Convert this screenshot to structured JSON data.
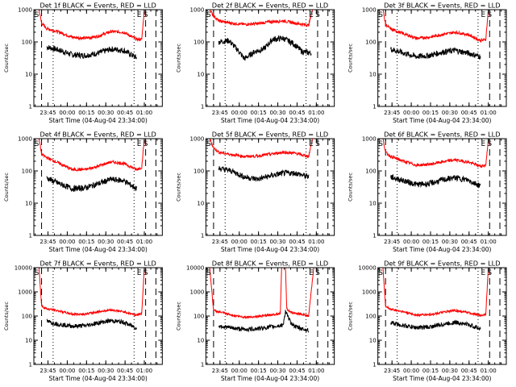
{
  "figure": {
    "xlabel": "Start Time (04-Aug-04 23:34:00)",
    "ylabel": "Counts/sec",
    "y_ticks": [
      {
        "value": 1,
        "label": "1"
      },
      {
        "value": 10,
        "label": "10"
      },
      {
        "value": 100,
        "label": "100"
      },
      {
        "value": 1000,
        "label": "1000"
      },
      {
        "value": 10000,
        "label": "10000"
      }
    ],
    "x_ticks": [
      {
        "value": 11,
        "label": "23:45"
      },
      {
        "value": 26,
        "label": "00:00"
      },
      {
        "value": 41,
        "label": "00:15"
      },
      {
        "value": 56,
        "label": "00:30"
      },
      {
        "value": 71,
        "label": "00:45"
      },
      {
        "value": 86,
        "label": "01:00"
      }
    ],
    "colors": {
      "events": "#000000",
      "lld": "#ff0000",
      "background": "#ffffff"
    }
  },
  "chart_data": [
    {
      "type": "line",
      "title": "Det 1f BLACK = Events, RED = LLD",
      "ylim": [
        1,
        1000
      ],
      "xlim": [
        0,
        100
      ],
      "y_scale": "log",
      "series": [
        {
          "name": "BLACK = Events",
          "color": "#000000",
          "x": [
            10,
            20,
            30,
            40,
            50,
            60,
            70,
            80
          ],
          "values": [
            70,
            55,
            40,
            38,
            45,
            60,
            55,
            32
          ]
        },
        {
          "name": "RED = LLD",
          "color": "#ff0000",
          "x": [
            0,
            4,
            6,
            10,
            20,
            30,
            40,
            50,
            60,
            70,
            80,
            84,
            86,
            88
          ],
          "values": [
            1000,
            1000,
            380,
            260,
            200,
            140,
            130,
            150,
            210,
            200,
            120,
            120,
            1000,
            1000
          ]
        }
      ],
      "markers": {
        "dashed": [
          6,
          87,
          95
        ],
        "dotted": [
          15,
          78
        ],
        "E_x": 82,
        "S_x": 87
      }
    },
    {
      "type": "line",
      "title": "Det 2f BLACK = Events, RED = LLD",
      "ylim": [
        1,
        1000
      ],
      "xlim": [
        0,
        100
      ],
      "y_scale": "log",
      "series": [
        {
          "name": "BLACK = Events",
          "color": "#000000",
          "x": [
            10,
            18,
            25,
            30,
            38,
            45,
            52,
            60,
            68,
            75,
            82
          ],
          "values": [
            100,
            110,
            55,
            30,
            50,
            60,
            120,
            130,
            90,
            50,
            45
          ]
        },
        {
          "name": "RED = LLD",
          "color": "#ff0000",
          "x": [
            0,
            3,
            6,
            10,
            20,
            30,
            40,
            50,
            60,
            70,
            80,
            83,
            86
          ],
          "values": [
            1000,
            1000,
            650,
            450,
            380,
            350,
            370,
            420,
            450,
            380,
            330,
            1000,
            1000
          ]
        }
      ],
      "markers": {
        "dashed": [
          6,
          87,
          95
        ],
        "dotted": [
          15,
          78
        ],
        "E_x": 82,
        "S_x": 87
      }
    },
    {
      "type": "line",
      "title": "Det 3f BLACK = Events, RED = LLD",
      "ylim": [
        1,
        1000
      ],
      "xlim": [
        0,
        100
      ],
      "y_scale": "log",
      "series": [
        {
          "name": "BLACK = Events",
          "color": "#000000",
          "x": [
            10,
            20,
            30,
            40,
            50,
            60,
            70,
            80
          ],
          "values": [
            60,
            45,
            35,
            38,
            48,
            55,
            45,
            35
          ]
        },
        {
          "name": "RED = LLD",
          "color": "#ff0000",
          "x": [
            0,
            4,
            6,
            10,
            20,
            30,
            40,
            50,
            60,
            70,
            80,
            84,
            86,
            88
          ],
          "values": [
            1000,
            1000,
            350,
            250,
            180,
            130,
            140,
            170,
            200,
            170,
            110,
            120,
            1000,
            1000
          ]
        }
      ],
      "markers": {
        "dashed": [
          6,
          87,
          95
        ],
        "dotted": [
          15,
          78
        ],
        "E_x": 82,
        "S_x": 87
      }
    },
    {
      "type": "line",
      "title": "Det 4f BLACK = Events, RED = LLD",
      "ylim": [
        1,
        1000
      ],
      "xlim": [
        0,
        100
      ],
      "y_scale": "log",
      "series": [
        {
          "name": "BLACK = Events",
          "color": "#000000",
          "x": [
            10,
            20,
            30,
            40,
            50,
            60,
            70,
            80
          ],
          "values": [
            60,
            40,
            28,
            30,
            40,
            55,
            50,
            28
          ]
        },
        {
          "name": "RED = LLD",
          "color": "#ff0000",
          "x": [
            0,
            4,
            6,
            10,
            20,
            30,
            40,
            50,
            60,
            70,
            80,
            84,
            86,
            88
          ],
          "values": [
            1000,
            1000,
            330,
            260,
            170,
            110,
            110,
            140,
            190,
            170,
            110,
            130,
            1000,
            1000
          ]
        }
      ],
      "markers": {
        "dashed": [
          6,
          87,
          95
        ],
        "dotted": [
          15,
          78
        ],
        "E_x": 82,
        "S_x": 87
      }
    },
    {
      "type": "line",
      "title": "Det 5f BLACK = Events, RED = LLD",
      "ylim": [
        1,
        1000
      ],
      "xlim": [
        0,
        100
      ],
      "y_scale": "log",
      "series": [
        {
          "name": "BLACK = Events",
          "color": "#000000",
          "x": [
            10,
            20,
            30,
            40,
            50,
            60,
            70,
            80
          ],
          "values": [
            120,
            100,
            65,
            55,
            70,
            85,
            85,
            65
          ]
        },
        {
          "name": "RED = LLD",
          "color": "#ff0000",
          "x": [
            0,
            3,
            6,
            10,
            20,
            30,
            40,
            50,
            60,
            70,
            80,
            83,
            86
          ],
          "values": [
            1000,
            1000,
            520,
            380,
            320,
            280,
            290,
            330,
            380,
            350,
            280,
            1000,
            1000
          ]
        }
      ],
      "markers": {
        "dashed": [
          6,
          87,
          95
        ],
        "dotted": [
          15,
          78
        ],
        "E_x": 82,
        "S_x": 87
      }
    },
    {
      "type": "line",
      "title": "Det 6f BLACK = Events, RED = LLD",
      "ylim": [
        1,
        1000
      ],
      "xlim": [
        0,
        100
      ],
      "y_scale": "log",
      "series": [
        {
          "name": "BLACK = Events",
          "color": "#000000",
          "x": [
            10,
            20,
            30,
            40,
            50,
            60,
            70,
            80
          ],
          "values": [
            65,
            50,
            38,
            40,
            52,
            62,
            52,
            35
          ]
        },
        {
          "name": "RED = LLD",
          "color": "#ff0000",
          "x": [
            0,
            4,
            6,
            10,
            20,
            30,
            40,
            50,
            60,
            70,
            80,
            84,
            86,
            88
          ],
          "values": [
            1000,
            1000,
            380,
            280,
            200,
            150,
            160,
            190,
            220,
            190,
            140,
            150,
            1000,
            1000
          ]
        }
      ],
      "markers": {
        "dashed": [
          6,
          87,
          95
        ],
        "dotted": [
          15,
          78
        ],
        "E_x": 82,
        "S_x": 87
      }
    },
    {
      "type": "line",
      "title": "Det 7f BLACK = Events, RED = LLD",
      "ylim": [
        1,
        10000
      ],
      "xlim": [
        0,
        100
      ],
      "y_scale": "log",
      "series": [
        {
          "name": "BLACK = Events",
          "color": "#000000",
          "x": [
            10,
            20,
            30,
            40,
            50,
            60,
            70,
            80
          ],
          "values": [
            60,
            45,
            38,
            40,
            52,
            65,
            55,
            32
          ]
        },
        {
          "name": "RED = LLD",
          "color": "#ff0000",
          "x": [
            0,
            4,
            6,
            10,
            20,
            30,
            40,
            50,
            60,
            70,
            80,
            84,
            86,
            88
          ],
          "values": [
            10000,
            10000,
            260,
            200,
            160,
            120,
            120,
            150,
            180,
            150,
            110,
            130,
            10000,
            10000
          ]
        }
      ],
      "markers": {
        "dashed": [
          6,
          87,
          95
        ],
        "dotted": [
          15,
          78
        ],
        "E_x": 82,
        "S_x": 87
      }
    },
    {
      "type": "line",
      "title": "Det 8f BLACK = Events, RED = LLD",
      "ylim": [
        1,
        10000
      ],
      "xlim": [
        0,
        100
      ],
      "y_scale": "log",
      "series": [
        {
          "name": "BLACK = Events",
          "color": "#000000",
          "x": [
            10,
            20,
            30,
            40,
            50,
            60,
            62,
            66,
            70,
            75,
            80
          ],
          "values": [
            40,
            32,
            28,
            30,
            35,
            42,
            150,
            55,
            35,
            30,
            25
          ]
        },
        {
          "name": "RED = LLD",
          "color": "#ff0000",
          "x": [
            0,
            3,
            6,
            10,
            20,
            30,
            40,
            50,
            58,
            59,
            62,
            63,
            66,
            70,
            75,
            80,
            84,
            86
          ],
          "values": [
            10000,
            10000,
            170,
            150,
            110,
            90,
            95,
            110,
            130,
            10000,
            10000,
            200,
            140,
            130,
            120,
            100,
            10000,
            10000
          ]
        }
      ],
      "markers": {
        "dashed": [
          6,
          87,
          95
        ],
        "dotted": [
          15,
          78
        ],
        "E_x": 82,
        "S_x": 87
      }
    },
    {
      "type": "line",
      "title": "Det 9f BLACK = Events, RED = LLD",
      "ylim": [
        1,
        10000
      ],
      "xlim": [
        0,
        100
      ],
      "y_scale": "log",
      "series": [
        {
          "name": "BLACK = Events",
          "color": "#000000",
          "x": [
            10,
            20,
            30,
            40,
            50,
            60,
            70,
            80
          ],
          "values": [
            55,
            40,
            33,
            35,
            45,
            55,
            45,
            30
          ]
        },
        {
          "name": "RED = LLD",
          "color": "#ff0000",
          "x": [
            0,
            4,
            6,
            10,
            20,
            30,
            40,
            50,
            60,
            70,
            80,
            84,
            86,
            88
          ],
          "values": [
            10000,
            10000,
            250,
            190,
            150,
            110,
            115,
            140,
            170,
            140,
            105,
            120,
            10000,
            10000
          ]
        }
      ],
      "markers": {
        "dashed": [
          6,
          87,
          95
        ],
        "dotted": [
          15,
          78
        ],
        "E_x": 82,
        "S_x": 87
      }
    }
  ]
}
